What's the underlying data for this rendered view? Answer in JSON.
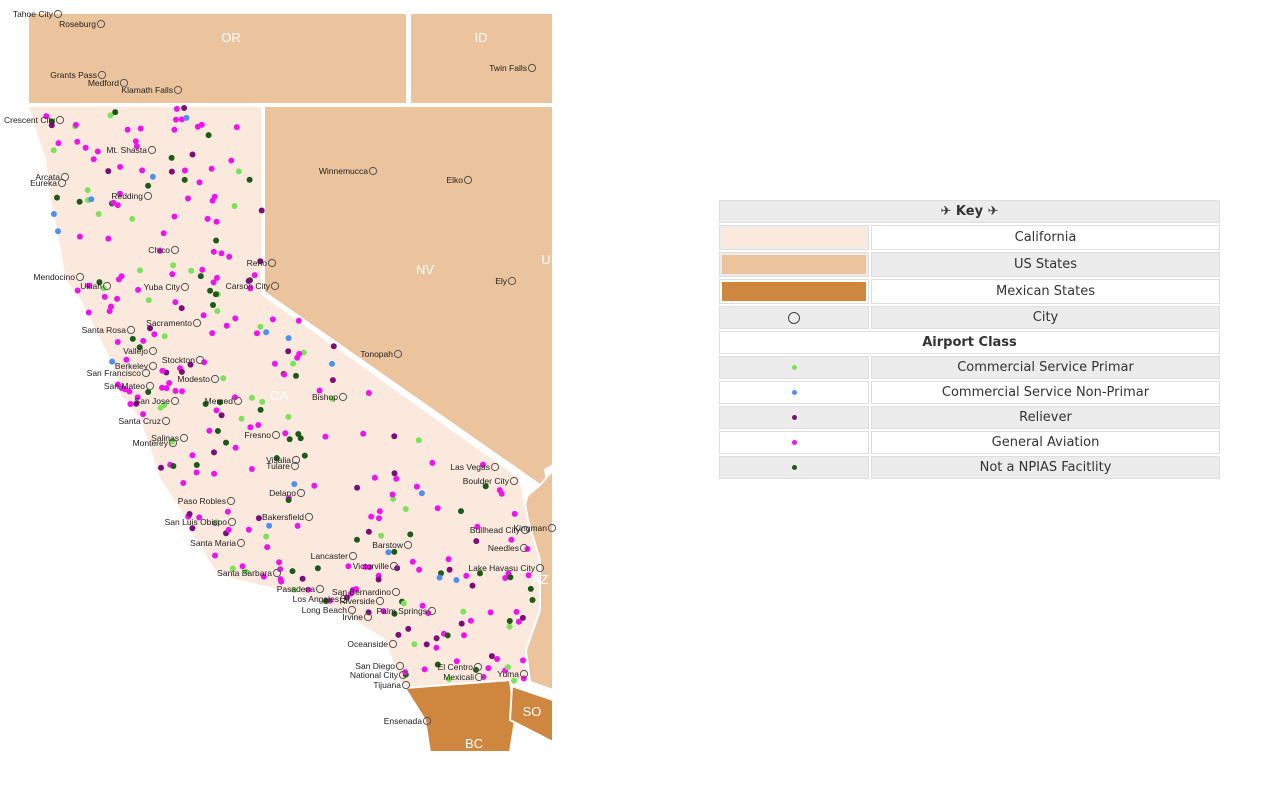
{
  "colors": {
    "california": "#fbe9dd",
    "us_states": "#ebc39c",
    "mexican_states": "#cf863f",
    "commercial_primary": "#7ae35a",
    "commercial_non_primary": "#4f8ff0",
    "reliever": "#7a0f7a",
    "general_aviation": "#ee14ee",
    "not_npias": "#1e5a16",
    "city_ring": "#555555"
  },
  "legend": {
    "title": "✈ Key ✈",
    "area_rows": [
      {
        "label": "California",
        "color": "#fbe9dd"
      },
      {
        "label": "US States",
        "color": "#ebc39c"
      },
      {
        "label": "Mexican States",
        "color": "#cf863f"
      },
      {
        "label": "City",
        "symbol": "city-ring"
      }
    ],
    "airport_class_title": "Airport Class",
    "airport_rows": [
      {
        "label": "Commercial Service Primar",
        "color": "#7ae35a"
      },
      {
        "label": "Commercial Service Non-Primar",
        "color": "#4f8ff0"
      },
      {
        "label": "Reliever",
        "color": "#7a0f7a"
      },
      {
        "label": "General Aviation",
        "color": "#ee14ee"
      },
      {
        "label": "Not a NPIAS Facitlity",
        "color": "#1e5a16"
      }
    ]
  },
  "map": {
    "state_labels": [
      "OR",
      "ID",
      "NV",
      "U",
      "CA",
      "AZ",
      "BC",
      "SO"
    ],
    "cities": [
      "Roseburg",
      "Grants Pass",
      "Medford",
      "Klamath Falls",
      "Twin Falls",
      "Crescent City",
      "Mt. Shasta",
      "Arcata",
      "Eureka",
      "Redding",
      "Winnemucca",
      "Elko",
      "Chico",
      "Reno",
      "Mendocino",
      "Ukiah",
      "Yuba City",
      "Carson City",
      "Ely",
      "Santa Rosa",
      "Sacramento",
      "Vallejo",
      "Stockton",
      "Berkeley",
      "San Francisco",
      "Modesto",
      "San Mateo",
      "San Jose",
      "Merced",
      "Tonopah",
      "Santa Cruz",
      "Salinas",
      "Monterey",
      "Bishop",
      "Fresno",
      "Visalia",
      "Tulare",
      "Las Vegas",
      "Boulder City",
      "Delano",
      "Paso Robles",
      "Bakersfield",
      "San Luis Obispo",
      "Bullhead City",
      "Kingman",
      "Santa Maria",
      "Barstow",
      "Needles",
      "Lancaster",
      "Victorville",
      "Lake Havasu City",
      "Santa Barbara",
      "Pasadena",
      "San Bernardino",
      "Los Angeles",
      "Riverside",
      "Long Beach",
      "Palm Springs",
      "Irvine",
      "Oceanside",
      "San Diego",
      "National City",
      "El Centro",
      "Mexicali",
      "Yuma",
      "Tijuana",
      "Ensenada",
      "Tahoe City"
    ]
  }
}
